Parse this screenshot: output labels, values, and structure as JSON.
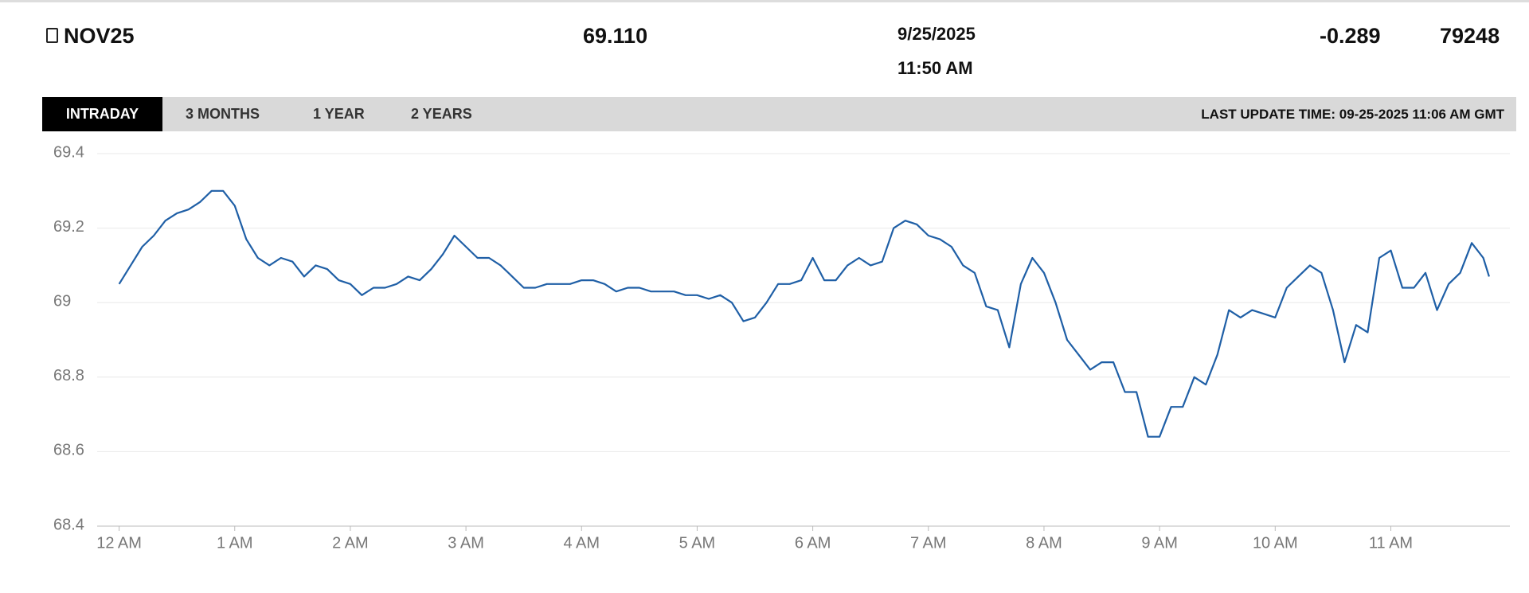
{
  "header": {
    "symbol": "NOV25",
    "last": "69.110",
    "date": "9/25/2025",
    "time": "11:50 AM",
    "change": "-0.289",
    "volume": "79248"
  },
  "tabs": [
    "INTRADAY",
    "3 MONTHS",
    "1 YEAR",
    "2 YEARS"
  ],
  "last_update": "LAST UPDATE TIME: 09-25-2025 11:06 AM GMT",
  "chart_data": {
    "type": "line",
    "color": "#1f5fa6",
    "grid": true,
    "x": [
      0,
      0.1,
      0.2,
      0.3,
      0.4,
      0.5,
      0.6,
      0.7,
      0.8,
      0.9,
      1,
      1.1,
      1.2,
      1.3,
      1.4,
      1.5,
      1.6,
      1.7,
      1.8,
      1.9,
      2,
      2.1,
      2.2,
      2.3,
      2.4,
      2.5,
      2.6,
      2.7,
      2.8,
      2.9,
      3,
      3.1,
      3.2,
      3.3,
      3.4,
      3.5,
      3.6,
      3.7,
      3.8,
      3.9,
      4,
      4.1,
      4.2,
      4.3,
      4.4,
      4.5,
      4.6,
      4.7,
      4.8,
      4.9,
      5,
      5.1,
      5.2,
      5.3,
      5.4,
      5.5,
      5.6,
      5.7,
      5.8,
      5.9,
      6,
      6.1,
      6.2,
      6.3,
      6.4,
      6.5,
      6.6,
      6.7,
      6.8,
      6.9,
      7,
      7.1,
      7.2,
      7.3,
      7.4,
      7.5,
      7.6,
      7.7,
      7.8,
      7.9,
      8,
      8.1,
      8.2,
      8.3,
      8.4,
      8.5,
      8.6,
      8.7,
      8.8,
      8.9,
      9,
      9.1,
      9.2,
      9.3,
      9.4,
      9.5,
      9.6,
      9.7,
      9.8,
      9.9,
      10,
      10.1,
      10.2,
      10.3,
      10.4,
      10.5,
      10.6,
      10.7,
      10.8,
      10.9,
      11,
      11.1,
      11.2,
      11.3,
      11.4,
      11.5,
      11.6,
      11.7,
      11.8,
      11.85
    ],
    "values": [
      69.05,
      69.1,
      69.15,
      69.18,
      69.22,
      69.24,
      69.25,
      69.27,
      69.3,
      69.3,
      69.26,
      69.17,
      69.12,
      69.1,
      69.12,
      69.11,
      69.07,
      69.1,
      69.09,
      69.06,
      69.05,
      69.02,
      69.04,
      69.04,
      69.05,
      69.07,
      69.06,
      69.09,
      69.13,
      69.18,
      69.15,
      69.12,
      69.12,
      69.1,
      69.07,
      69.04,
      69.04,
      69.05,
      69.05,
      69.05,
      69.06,
      69.06,
      69.05,
      69.03,
      69.04,
      69.04,
      69.03,
      69.03,
      69.03,
      69.02,
      69.02,
      69.01,
      69.02,
      69.0,
      68.95,
      68.96,
      69.0,
      69.05,
      69.05,
      69.06,
      69.12,
      69.06,
      69.06,
      69.1,
      69.12,
      69.1,
      69.11,
      69.2,
      69.22,
      69.21,
      69.18,
      69.17,
      69.15,
      69.1,
      69.08,
      68.99,
      68.98,
      68.88,
      69.05,
      69.12,
      69.08,
      69.0,
      68.9,
      68.86,
      68.82,
      68.84,
      68.84,
      68.76,
      68.76,
      68.64,
      68.64,
      68.72,
      68.72,
      68.8,
      68.78,
      68.86,
      68.98,
      68.96,
      68.98,
      68.97,
      68.96,
      69.04,
      69.07,
      69.1,
      69.08,
      68.98,
      68.84,
      68.94,
      68.92,
      69.12,
      69.14,
      69.04,
      69.04,
      69.08,
      68.98,
      69.05,
      69.08,
      69.16,
      69.12,
      69.07
    ],
    "xlim": [
      -0.19,
      12.03
    ],
    "xticks": [
      {
        "value": 0,
        "label": "12 AM"
      },
      {
        "value": 1,
        "label": "1 AM"
      },
      {
        "value": 2,
        "label": "2 AM"
      },
      {
        "value": 3,
        "label": "3 AM"
      },
      {
        "value": 4,
        "label": "4 AM"
      },
      {
        "value": 5,
        "label": "5 AM"
      },
      {
        "value": 6,
        "label": "6 AM"
      },
      {
        "value": 7,
        "label": "7 AM"
      },
      {
        "value": 8,
        "label": "8 AM"
      },
      {
        "value": 9,
        "label": "9 AM"
      },
      {
        "value": 10,
        "label": "10 AM"
      },
      {
        "value": 11,
        "label": "11 AM"
      }
    ],
    "ylim": [
      68.4,
      69.4
    ],
    "yticks": [
      68.4,
      68.6,
      68.8,
      69,
      69.2,
      69.4
    ]
  }
}
